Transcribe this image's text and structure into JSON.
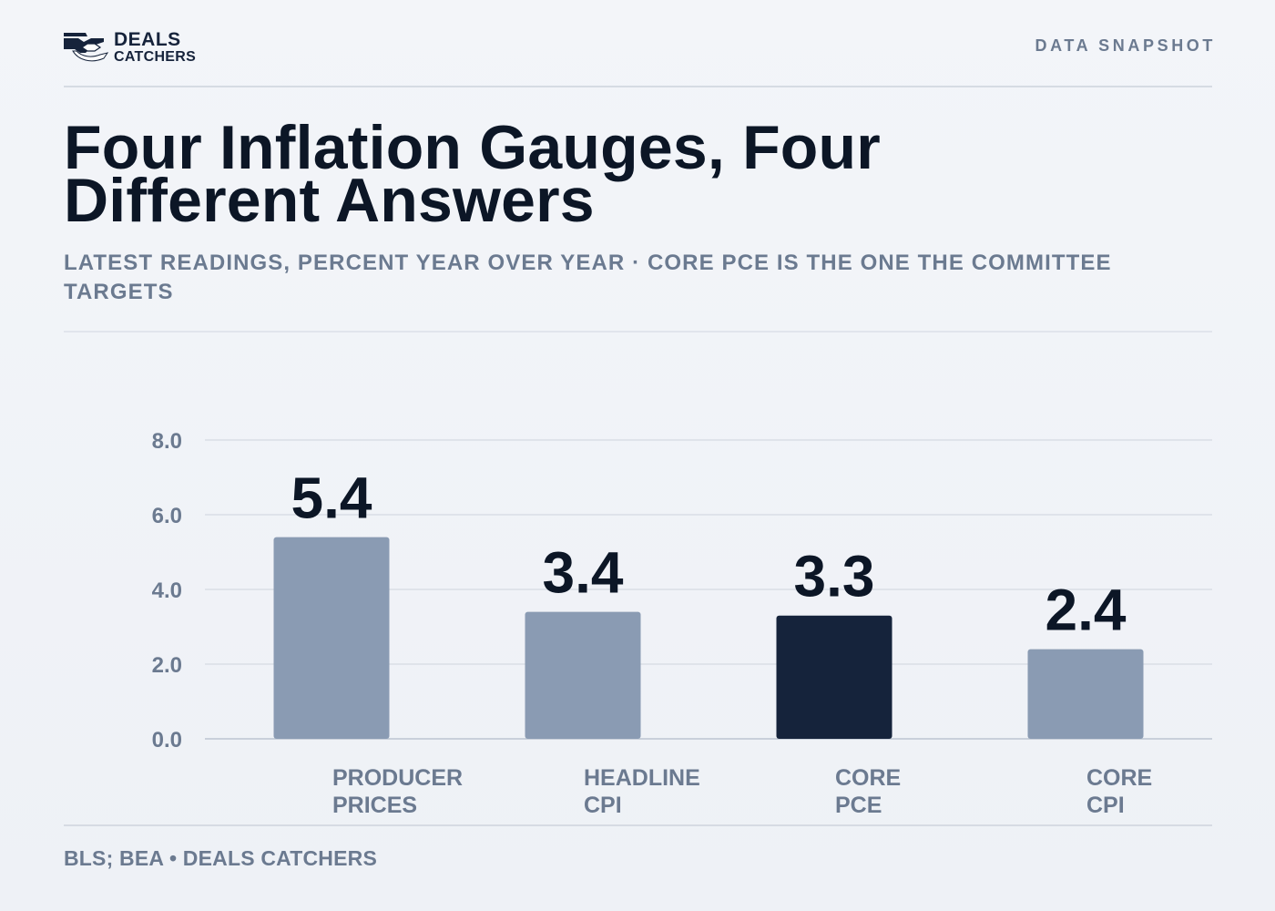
{
  "brand": {
    "line1": "DEALS",
    "line2": "CATCHERS"
  },
  "eyebrow": "DATA SNAPSHOT",
  "title": "Four Inflation Gauges, Four Different Answers",
  "subtitle": "LATEST READINGS, PERCENT YEAR OVER YEAR · CORE PCE IS THE ONE THE COMMITTEE TARGETS",
  "footer": "BLS; BEA • DEALS CATCHERS",
  "colors": {
    "bar": "#8a9bb3",
    "highlight": "#15233b",
    "title": "#0c1626",
    "muted": "#6b7a90",
    "grid": "#dfe3ea"
  },
  "chart_data": {
    "type": "bar",
    "title": "Four Inflation Gauges, Four Different Answers",
    "subtitle": "LATEST READINGS, PERCENT YEAR OVER YEAR · CORE PCE IS THE ONE THE COMMITTEE TARGETS",
    "categories": [
      "PRODUCER PRICES",
      "HEADLINE CPI",
      "CORE PCE",
      "CORE CPI"
    ],
    "category_lines": [
      [
        "PRODUCER",
        "PRICES"
      ],
      [
        "HEADLINE",
        "CPI"
      ],
      [
        "CORE",
        "PCE"
      ],
      [
        "CORE",
        "CPI"
      ]
    ],
    "values": [
      5.4,
      3.4,
      3.3,
      2.4
    ],
    "value_labels": [
      "5.4",
      "3.4",
      "3.3",
      "2.4"
    ],
    "highlight": "CORE PCE",
    "xlabel": "",
    "ylabel": "",
    "ylim": [
      0,
      8
    ],
    "yticks": [
      0,
      2,
      4,
      6,
      8
    ],
    "ytick_labels": [
      "0.0",
      "2.0",
      "4.0",
      "6.0",
      "8.0"
    ],
    "grid": true,
    "legend": "none"
  }
}
